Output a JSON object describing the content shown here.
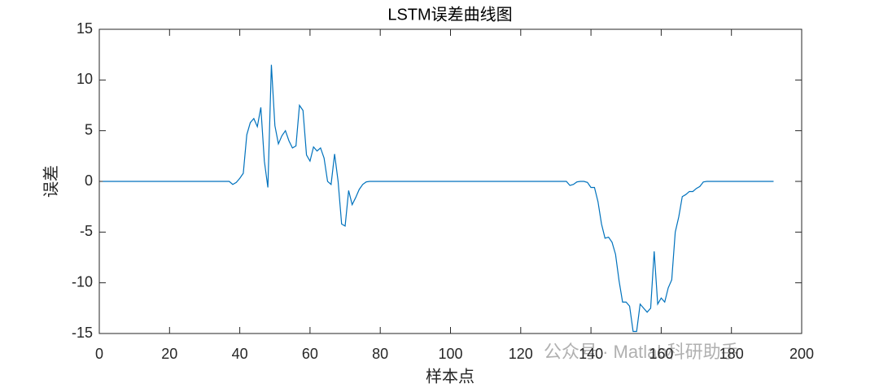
{
  "chart_data": {
    "type": "line",
    "title": "LSTM误差曲线图",
    "xlabel": "样本点",
    "ylabel": "误差",
    "watermark": "公众号 · Matlab科研助手",
    "xlim": [
      0,
      200
    ],
    "xticks": [
      0,
      20,
      40,
      60,
      80,
      100,
      120,
      140,
      160,
      180,
      200
    ],
    "ylim": [
      -15,
      15
    ],
    "yticks": [
      -15,
      -10,
      -5,
      0,
      5,
      10,
      15
    ],
    "grid": false,
    "x": [
      1,
      2,
      3,
      4,
      5,
      6,
      7,
      8,
      9,
      10,
      11,
      12,
      13,
      14,
      15,
      16,
      17,
      18,
      19,
      20,
      21,
      22,
      23,
      24,
      25,
      26,
      27,
      28,
      29,
      30,
      31,
      32,
      33,
      34,
      35,
      36,
      37,
      38,
      39,
      40,
      41,
      42,
      43,
      44,
      45,
      46,
      47,
      48,
      49,
      50,
      51,
      52,
      53,
      54,
      55,
      56,
      57,
      58,
      59,
      60,
      61,
      62,
      63,
      64,
      65,
      66,
      67,
      68,
      69,
      70,
      71,
      72,
      73,
      74,
      75,
      76,
      77,
      78,
      79,
      80,
      81,
      82,
      83,
      84,
      85,
      86,
      87,
      88,
      89,
      90,
      91,
      92,
      93,
      94,
      95,
      96,
      97,
      98,
      99,
      100,
      101,
      102,
      103,
      104,
      105,
      106,
      107,
      108,
      109,
      110,
      111,
      112,
      113,
      114,
      115,
      116,
      117,
      118,
      119,
      120,
      121,
      122,
      123,
      124,
      125,
      126,
      127,
      128,
      129,
      130,
      131,
      132,
      133,
      134,
      135,
      136,
      137,
      138,
      139,
      140,
      141,
      142,
      143,
      144,
      145,
      146,
      147,
      148,
      149,
      150,
      151,
      152,
      153,
      154,
      155,
      156,
      157,
      158,
      159,
      160,
      161,
      162,
      163,
      164,
      165,
      166,
      167,
      168,
      169,
      170,
      171,
      172,
      173,
      174,
      175,
      176,
      177,
      178,
      179,
      180,
      181,
      182,
      183,
      184,
      185,
      186,
      187,
      188,
      189,
      190,
      191,
      192
    ],
    "series": [
      {
        "name": "误差",
        "color": "#0072bd",
        "values": [
          0,
          0,
          0,
          0,
          0,
          0,
          0,
          0,
          0,
          0,
          0,
          0,
          0,
          0,
          0,
          0,
          0,
          0,
          0,
          0,
          0,
          0,
          0,
          0,
          0,
          0,
          0,
          0,
          0,
          0,
          0,
          0,
          0,
          0,
          0,
          0,
          0,
          -0.3,
          -0.1,
          0.3,
          0.8,
          4.6,
          5.8,
          6.2,
          5.4,
          7.3,
          2,
          -0.6,
          11.5,
          5.5,
          3.7,
          4.5,
          5,
          4,
          3.3,
          3.5,
          7.5,
          7,
          2.6,
          2,
          3.4,
          3,
          3.3,
          2.3,
          0,
          -0.3,
          2.7,
          0,
          -4.2,
          -4.4,
          -0.9,
          -2.3,
          -1.6,
          -0.8,
          -0.3,
          -0.05,
          0,
          0,
          0,
          0,
          0,
          0,
          0,
          0,
          0,
          0,
          0,
          0,
          0,
          0,
          0,
          0,
          0,
          0,
          0,
          0,
          0,
          0,
          0,
          0,
          0,
          0,
          0,
          0,
          0,
          0,
          0,
          0,
          0,
          0,
          0,
          0,
          0,
          0,
          0,
          0,
          0,
          0,
          0,
          0,
          0,
          0,
          0,
          0,
          0,
          0,
          0,
          0,
          0,
          0,
          0,
          0,
          0,
          -0.4,
          -0.3,
          -0.05,
          0,
          0,
          -0.1,
          -0.6,
          -0.6,
          -2,
          -4.2,
          -5.6,
          -5.5,
          -6,
          -7.2,
          -9.8,
          -11.9,
          -11.9,
          -12.3,
          -14.8,
          -14.8,
          -12.1,
          -12.5,
          -12.9,
          -12.5,
          -6.9,
          -12.1,
          -11.5,
          -11.9,
          -10.5,
          -9.7,
          -5,
          -3.5,
          -1.5,
          -1.3,
          -1,
          -1,
          -0.7,
          -0.5,
          -0.05,
          0,
          0,
          0,
          0,
          0,
          0,
          0,
          0,
          0,
          0,
          0,
          0,
          0,
          0,
          0,
          0,
          0,
          0,
          0,
          0
        ]
      }
    ]
  }
}
